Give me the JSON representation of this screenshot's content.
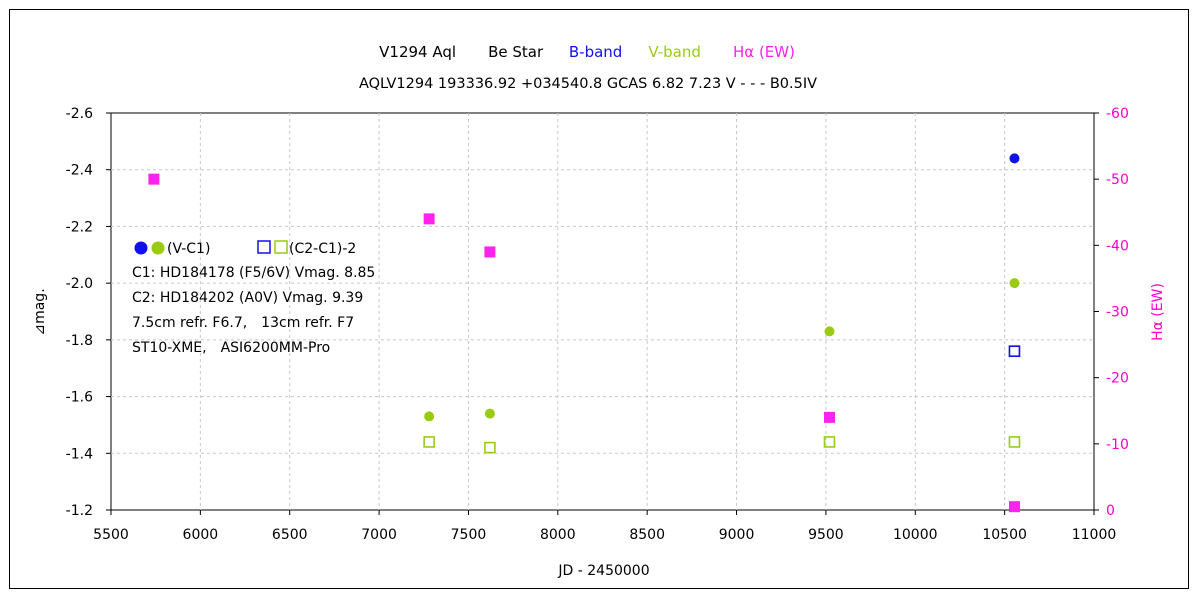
{
  "chart_data": {
    "type": "scatter",
    "title": {
      "object": "V1294 Aql",
      "kind": "Be Star",
      "legend_b": "B-band",
      "legend_v": "V-band",
      "legend_ha": "Hα (EW)"
    },
    "subtitle": "AQLV1294 193336.92 +034540.8 GCAS 6.82 7.23 V - - - B0.5IV",
    "xlabel": "JD - 2450000",
    "ylabel": "⊿mag.",
    "y2label": "Hα (EW)",
    "xlim": [
      5500,
      11000
    ],
    "ylim": [
      -1.2,
      -2.6
    ],
    "y2lim": [
      0,
      -60
    ],
    "xticks": [
      5500,
      6000,
      6500,
      7000,
      7500,
      8000,
      8500,
      9000,
      9500,
      10000,
      10500,
      11000
    ],
    "yticks": [
      -2.6,
      -2.4,
      -2.2,
      -2.0,
      -1.8,
      -1.6,
      -1.4,
      -1.2
    ],
    "y2ticks": [
      -60,
      -50,
      -40,
      -30,
      -20,
      -10,
      0
    ],
    "grid": true,
    "colors": {
      "b": "#1010ee",
      "v": "#99cc11",
      "ha": "#ff22ee",
      "axis2": "#ff00cc",
      "grid": "#c8c8c8"
    },
    "series": [
      {
        "name": "B-band (V-C1)",
        "axis": "left",
        "marker": "filled-circle",
        "color": "#1010ee",
        "x": [
          10555
        ],
        "y": [
          -2.44
        ]
      },
      {
        "name": "V-band (V-C1)",
        "axis": "left",
        "marker": "filled-circle",
        "color": "#99cc11",
        "x": [
          7280,
          7620,
          9520,
          10555
        ],
        "y": [
          -1.53,
          -1.54,
          -1.83,
          -2.0
        ]
      },
      {
        "name": "B-band (C2-C1)-2",
        "axis": "left",
        "marker": "open-square",
        "color": "#1010ee",
        "x": [
          10555
        ],
        "y": [
          -1.76
        ]
      },
      {
        "name": "V-band (C2-C1)-2",
        "axis": "left",
        "marker": "open-square",
        "color": "#99cc11",
        "x": [
          7280,
          7620,
          9520,
          10555
        ],
        "y": [
          -1.44,
          -1.42,
          -1.44,
          -1.44
        ]
      },
      {
        "name": "Hα (EW)",
        "axis": "right",
        "marker": "filled-square",
        "color": "#ff22ee",
        "x": [
          5740,
          7280,
          7620,
          9520,
          10555
        ],
        "y": [
          -50,
          -44,
          -39,
          -14,
          -0.5
        ]
      }
    ],
    "annotations": {
      "legend_vc1": "(V-C1)",
      "legend_c2c1": "(C2-C1)-2",
      "lines": [
        "C1: HD184178 (F5/6V) Vmag. 8.85",
        "C2: HD184202 (A0V) Vmag. 9.39",
        "7.5cm refr. F6.7,　13cm refr. F7",
        "ST10-XME,　ASI6200MM-Pro"
      ]
    }
  }
}
